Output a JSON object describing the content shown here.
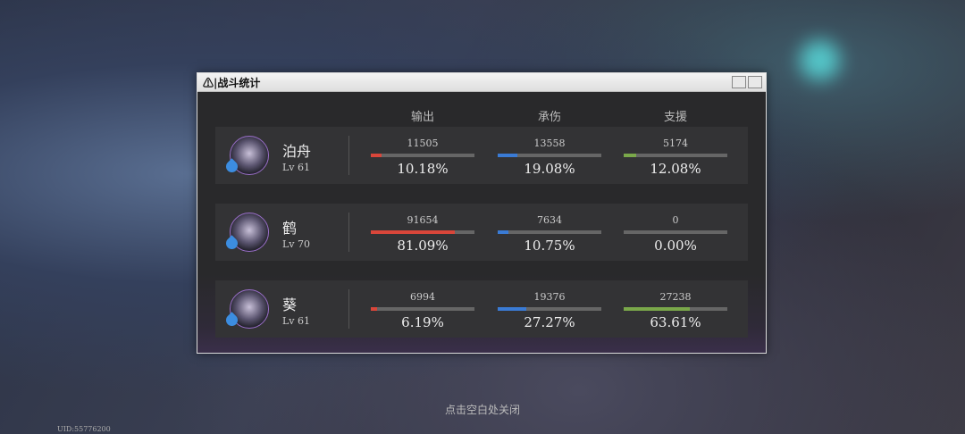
{
  "window": {
    "title": "战斗统计",
    "headers": [
      "输出",
      "承伤",
      "支援"
    ],
    "rows": [
      {
        "name": "泊舟",
        "level": "Lv 61",
        "stats": [
          {
            "value": 11505,
            "percent": 10.18,
            "percent_label": "10.18%"
          },
          {
            "value": 13558,
            "percent": 19.08,
            "percent_label": "19.08%"
          },
          {
            "value": 5174,
            "percent": 12.08,
            "percent_label": "12.08%"
          }
        ]
      },
      {
        "name": "鹤",
        "level": "Lv 70",
        "stats": [
          {
            "value": 91654,
            "percent": 81.09,
            "percent_label": "81.09%"
          },
          {
            "value": 7634,
            "percent": 10.75,
            "percent_label": "10.75%"
          },
          {
            "value": 0,
            "percent": 0,
            "percent_label": "0.00%"
          }
        ]
      },
      {
        "name": "葵",
        "level": "Lv 61",
        "stats": [
          {
            "value": 6994,
            "percent": 6.19,
            "percent_label": "6.19%"
          },
          {
            "value": 19376,
            "percent": 27.27,
            "percent_label": "27.27%"
          },
          {
            "value": 27238,
            "percent": 63.61,
            "percent_label": "63.61%"
          }
        ]
      }
    ]
  },
  "footer": "点击空白处关闭",
  "uid": "UID:55776200"
}
